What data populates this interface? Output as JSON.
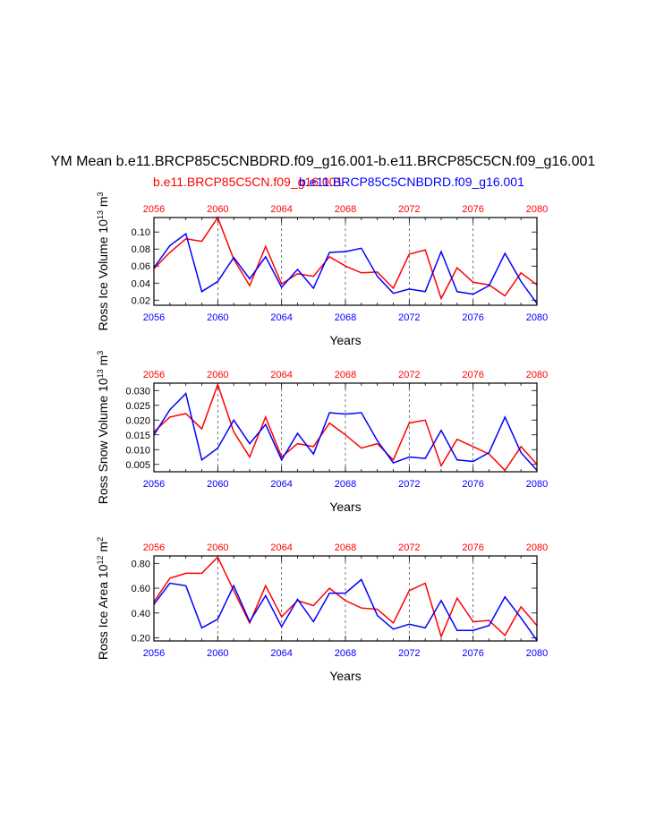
{
  "title": "YM Mean b.e11.BRCP85C5CNBDRD.f09_g16.001-b.e11.BRCP85C5CN.f09_g16.001",
  "legend": {
    "red_label": "b.e11.BRCP85C5CN.f09_g16.001",
    "blue_label": "b.e11.BRCP85C5CNBDRD.f09_g16.001"
  },
  "colors": {
    "series_a": "#ff0000",
    "series_b": "#0000ff",
    "axis": "#000000",
    "grid": "#555555"
  },
  "chart_data": [
    {
      "type": "line",
      "ylabel": "Ross Ice Volume 10^13 m^3",
      "xlabel": "Years",
      "xlim": [
        2056,
        2080
      ],
      "ylim": [
        0.014,
        0.117
      ],
      "xticks": [
        2056,
        2060,
        2064,
        2068,
        2072,
        2076,
        2080
      ],
      "yticks": [
        0.02,
        0.04,
        0.06,
        0.08,
        0.1
      ],
      "ytick_labels": [
        "0.02",
        "0.04",
        "0.06",
        "0.08",
        "0.10"
      ],
      "gridlines_x": [
        2060,
        2064,
        2068,
        2072,
        2076
      ],
      "x": [
        2056,
        2057,
        2058,
        2059,
        2060,
        2061,
        2062,
        2063,
        2064,
        2065,
        2066,
        2067,
        2068,
        2069,
        2070,
        2071,
        2072,
        2073,
        2074,
        2075,
        2076,
        2077,
        2078,
        2079,
        2080
      ],
      "series": [
        {
          "name": "b.e11.BRCP85C5CN.f09_g16.001",
          "color": "#ff0000",
          "values": [
            0.057,
            0.076,
            0.092,
            0.089,
            0.117,
            0.068,
            0.037,
            0.083,
            0.039,
            0.051,
            0.048,
            0.071,
            0.06,
            0.052,
            0.053,
            0.034,
            0.074,
            0.079,
            0.022,
            0.058,
            0.041,
            0.038,
            0.025,
            0.052,
            0.038
          ]
        },
        {
          "name": "b.e11.BRCP85C5CNBDRD.f09_g16.001",
          "color": "#0000ff",
          "values": [
            0.058,
            0.084,
            0.098,
            0.03,
            0.042,
            0.07,
            0.045,
            0.071,
            0.035,
            0.056,
            0.034,
            0.076,
            0.077,
            0.081,
            0.048,
            0.028,
            0.033,
            0.03,
            0.077,
            0.03,
            0.027,
            0.037,
            0.075,
            0.042,
            0.016
          ]
        }
      ]
    },
    {
      "type": "line",
      "ylabel": "Ross Snow Volume 10^13 m^3",
      "xlabel": "Years",
      "xlim": [
        2056,
        2080
      ],
      "ylim": [
        0.0025,
        0.0325
      ],
      "xticks": [
        2056,
        2060,
        2064,
        2068,
        2072,
        2076,
        2080
      ],
      "yticks": [
        0.005,
        0.01,
        0.015,
        0.02,
        0.025,
        0.03
      ],
      "ytick_labels": [
        "0.005",
        "0.010",
        "0.015",
        "0.020",
        "0.025",
        "0.030"
      ],
      "gridlines_x": [
        2060,
        2064,
        2068,
        2072,
        2076
      ],
      "x": [
        2056,
        2057,
        2058,
        2059,
        2060,
        2061,
        2062,
        2063,
        2064,
        2065,
        2066,
        2067,
        2068,
        2069,
        2070,
        2071,
        2072,
        2073,
        2074,
        2075,
        2076,
        2077,
        2078,
        2079,
        2080
      ],
      "series": [
        {
          "name": "b.e11.BRCP85C5CN.f09_g16.001",
          "color": "#ff0000",
          "values": [
            0.016,
            0.021,
            0.0222,
            0.017,
            0.032,
            0.016,
            0.0075,
            0.021,
            0.0075,
            0.012,
            0.011,
            0.019,
            0.015,
            0.0105,
            0.012,
            0.0065,
            0.019,
            0.02,
            0.0045,
            0.0135,
            0.011,
            0.0085,
            0.003,
            0.011,
            0.005
          ]
        },
        {
          "name": "b.e11.BRCP85C5CNBDRD.f09_g16.001",
          "color": "#0000ff",
          "values": [
            0.015,
            0.0235,
            0.029,
            0.0065,
            0.0105,
            0.02,
            0.012,
            0.0185,
            0.0065,
            0.0155,
            0.0085,
            0.0225,
            0.022,
            0.0225,
            0.013,
            0.0055,
            0.0075,
            0.007,
            0.0165,
            0.0065,
            0.006,
            0.009,
            0.021,
            0.009,
            0.003
          ]
        }
      ]
    },
    {
      "type": "line",
      "ylabel": "Ross Ice Area 10^12 m^2",
      "xlabel": "Years",
      "xlim": [
        2056,
        2080
      ],
      "ylim": [
        0.175,
        0.86
      ],
      "xticks": [
        2056,
        2060,
        2064,
        2068,
        2072,
        2076,
        2080
      ],
      "yticks": [
        0.2,
        0.4,
        0.6,
        0.8
      ],
      "ytick_labels": [
        "0.20",
        "0.40",
        "0.60",
        "0.80"
      ],
      "gridlines_x": [
        2060,
        2064,
        2068,
        2072,
        2076
      ],
      "x": [
        2056,
        2057,
        2058,
        2059,
        2060,
        2061,
        2062,
        2063,
        2064,
        2065,
        2066,
        2067,
        2068,
        2069,
        2070,
        2071,
        2072,
        2073,
        2074,
        2075,
        2076,
        2077,
        2078,
        2079,
        2080
      ],
      "series": [
        {
          "name": "b.e11.BRCP85C5CN.f09_g16.001",
          "color": "#ff0000",
          "values": [
            0.49,
            0.68,
            0.72,
            0.72,
            0.85,
            0.58,
            0.32,
            0.62,
            0.37,
            0.5,
            0.46,
            0.6,
            0.5,
            0.44,
            0.43,
            0.32,
            0.58,
            0.64,
            0.21,
            0.52,
            0.33,
            0.34,
            0.22,
            0.45,
            0.3
          ]
        },
        {
          "name": "b.e11.BRCP85C5CNBDRD.f09_g16.001",
          "color": "#0000ff",
          "values": [
            0.47,
            0.64,
            0.62,
            0.28,
            0.35,
            0.62,
            0.33,
            0.54,
            0.29,
            0.51,
            0.33,
            0.56,
            0.56,
            0.67,
            0.38,
            0.27,
            0.31,
            0.28,
            0.5,
            0.26,
            0.26,
            0.3,
            0.53,
            0.36,
            0.18
          ]
        }
      ]
    }
  ]
}
